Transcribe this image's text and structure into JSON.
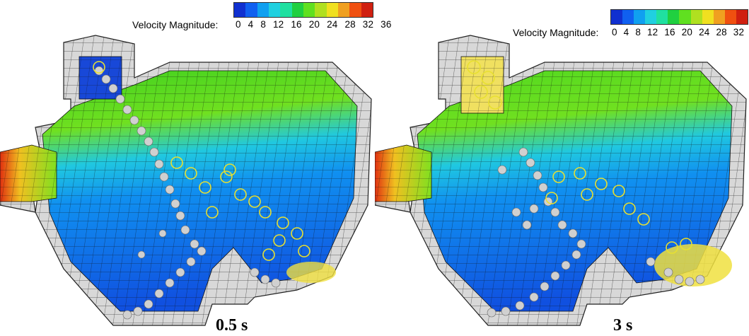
{
  "legend": {
    "title": "Velocity Magnitude:",
    "ticks": "0 4 8 12 16 20 24 28 32 36",
    "colors": [
      "#1030d0",
      "#1060f0",
      "#10a0f0",
      "#20d0e0",
      "#20e0a0",
      "#20d040",
      "#60e020",
      "#b0e020",
      "#f0e020",
      "#f0a020",
      "#f05010",
      "#d02010"
    ]
  },
  "panels": [
    {
      "time_label": "0.5 s"
    },
    {
      "time_label": "3 s"
    }
  ]
}
